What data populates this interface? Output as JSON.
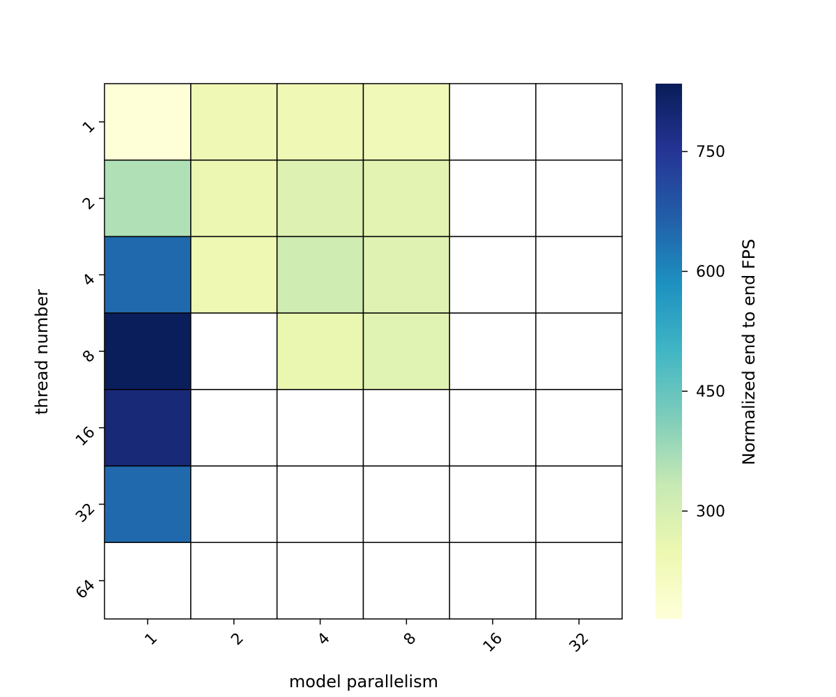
{
  "chart_data": {
    "type": "heatmap",
    "title": "",
    "xlabel": "model parallelism",
    "ylabel": "thread number",
    "x_categories": [
      "1",
      "2",
      "4",
      "8",
      "16",
      "32"
    ],
    "y_categories": [
      "1",
      "2",
      "4",
      "8",
      "16",
      "32",
      "64"
    ],
    "values": [
      [
        170,
        240,
        240,
        235,
        null,
        null
      ],
      [
        360,
        250,
        285,
        270,
        null,
        null
      ],
      [
        650,
        245,
        315,
        280,
        null,
        null
      ],
      [
        830,
        null,
        255,
        275,
        null,
        null
      ],
      [
        790,
        null,
        null,
        null,
        null,
        null
      ],
      [
        650,
        null,
        null,
        null,
        null,
        null
      ],
      [
        null,
        null,
        null,
        null,
        null,
        null
      ]
    ],
    "missing_color": "#ffffff",
    "colorbar": {
      "label": "Normalized end to end FPS",
      "vmin": 165,
      "vmax": 835,
      "ticks": [
        300,
        450,
        600,
        750
      ],
      "colormap": "YlGnBu"
    },
    "grid": true,
    "cell_border_color": "#000000"
  }
}
